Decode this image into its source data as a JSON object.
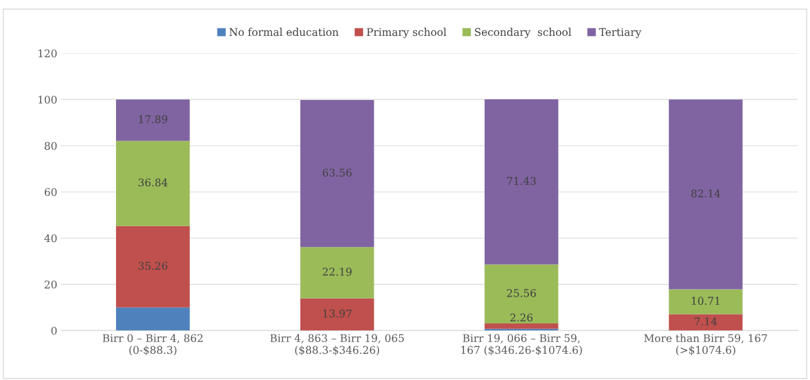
{
  "chart_data": {
    "type": "bar",
    "stacked": true,
    "categories": [
      "Birr 0 – Birr 4, 862\n(0-$88.3)",
      "Birr 4, 863 – Birr 19, 065\n($88.3-$346.26)",
      "Birr 19, 066 – Birr 59,\n167 ($346.26-$1074.6)",
      "More than Birr 59, 167\n(>$1074.6)"
    ],
    "series": [
      {
        "name": "No formal education",
        "color": "#4f81bd",
        "values": [
          10,
          0,
          0.8,
          0
        ],
        "value_labels": [
          null,
          null,
          null,
          null
        ]
      },
      {
        "name": "Primary school",
        "color": "#c0504d",
        "values": [
          35.26,
          13.97,
          2.26,
          7.14
        ],
        "value_labels": [
          "35.26",
          "13.97",
          "2.26",
          "7.14"
        ]
      },
      {
        "name": "Secondary  school",
        "color": "#9bbb59",
        "values": [
          36.84,
          22.19,
          25.56,
          10.71
        ],
        "value_labels": [
          "36.84",
          "22.19",
          "25.56",
          "10.71"
        ]
      },
      {
        "name": "Tertiary",
        "color": "#8064a2",
        "values": [
          17.89,
          63.56,
          71.43,
          82.14
        ],
        "value_labels": [
          "17.89",
          "63.56",
          "71.43",
          "82.14"
        ]
      }
    ],
    "ylim": [
      0,
      120
    ],
    "yticks": [
      0,
      20,
      40,
      60,
      80,
      100,
      120
    ],
    "grid": "y",
    "legend": "top"
  }
}
